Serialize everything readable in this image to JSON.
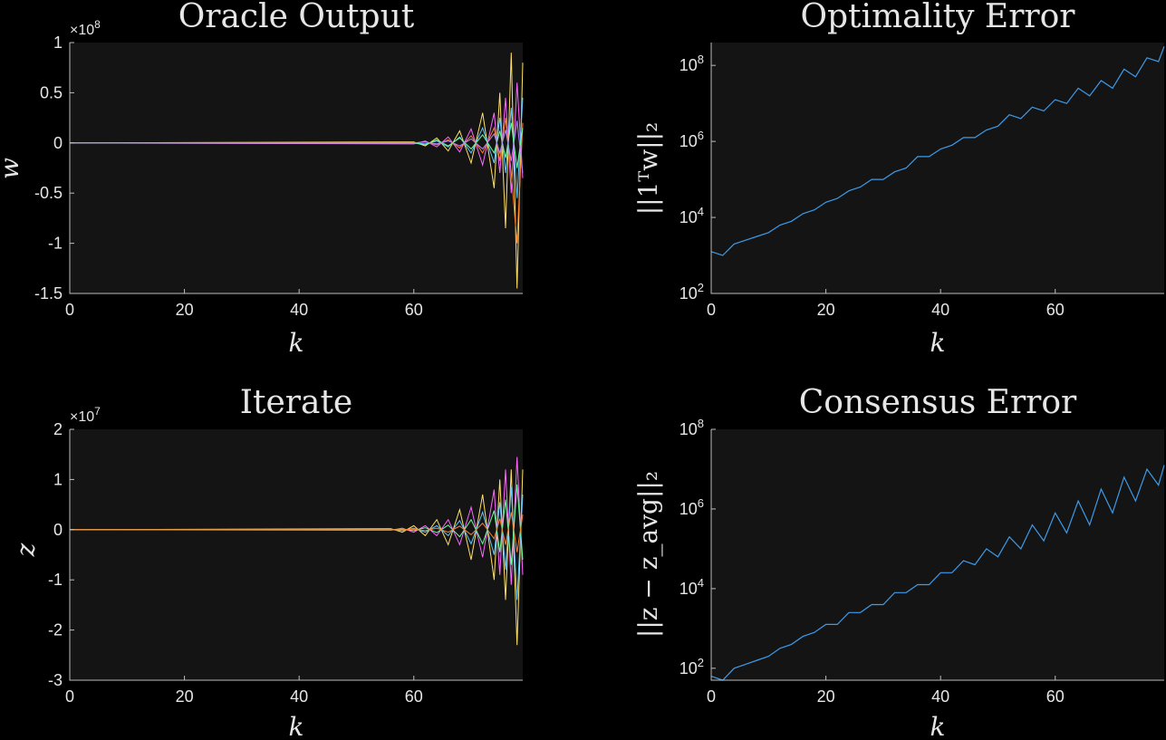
{
  "chart_data": [
    {
      "type": "line",
      "title": "Oracle Output",
      "xlabel": "k",
      "ylabel": "w",
      "xlim": [
        0,
        79
      ],
      "ylim": [
        -1.5,
        1
      ],
      "yscale": "linear",
      "exponent_label": "×10",
      "exponent_power": "8",
      "xticks": [
        0,
        20,
        40,
        60
      ],
      "xtick_labels": [
        "0",
        "20",
        "40",
        "60"
      ],
      "yticks": [
        1,
        0.5,
        0,
        -0.5,
        -1,
        -1.5
      ],
      "ytick_labels": [
        "1",
        "0.5",
        "0",
        "-0.5",
        "-1",
        "-1.5"
      ],
      "x": [
        60,
        62,
        64,
        66,
        68,
        70,
        72,
        74,
        75,
        76,
        77,
        78,
        79
      ],
      "series": [
        {
          "color": "#ffe066",
          "values": [
            0.01,
            -0.03,
            0.05,
            -0.08,
            0.12,
            -0.2,
            0.3,
            -0.45,
            0.5,
            -0.85,
            0.9,
            -1.45,
            0.8
          ]
        },
        {
          "color": "#ff66ff",
          "values": [
            -0.01,
            0.02,
            -0.04,
            0.06,
            -0.09,
            0.14,
            -0.22,
            0.3,
            -0.3,
            0.45,
            -0.5,
            0.6,
            -0.35
          ]
        },
        {
          "color": "#5ec8ff",
          "values": [
            0.0,
            -0.01,
            0.02,
            -0.04,
            0.06,
            -0.1,
            0.15,
            -0.2,
            0.25,
            -0.3,
            0.35,
            -0.55,
            0.45
          ]
        },
        {
          "color": "#ff7f2a",
          "values": [
            0.0,
            0.01,
            -0.02,
            0.03,
            -0.05,
            0.07,
            -0.1,
            0.15,
            -0.18,
            0.25,
            -0.3,
            -1.0,
            0.2
          ]
        },
        {
          "color": "#66ff99",
          "values": [
            0.0,
            -0.02,
            0.03,
            -0.03,
            0.05,
            -0.06,
            0.08,
            -0.1,
            0.12,
            -0.15,
            0.2,
            -0.25,
            0.15
          ]
        },
        {
          "color": "#b388ff",
          "values": [
            0.0,
            0.01,
            -0.01,
            0.02,
            -0.03,
            0.04,
            -0.06,
            0.09,
            -0.1,
            0.13,
            -0.18,
            0.22,
            -0.3
          ]
        }
      ]
    },
    {
      "type": "line",
      "title": "Optimality Error",
      "xlabel": "k",
      "ylabel": "||1ᵀw||₂",
      "xlim": [
        0,
        79
      ],
      "yscale": "log",
      "ylim_log10": [
        2,
        8.6
      ],
      "xticks": [
        0,
        20,
        40,
        60
      ],
      "xtick_labels": [
        "0",
        "20",
        "40",
        "60"
      ],
      "yticks_log10": [
        2,
        4,
        6,
        8
      ],
      "ytick_bases": [
        "10",
        "10",
        "10",
        "10"
      ],
      "ytick_powers": [
        "2",
        "4",
        "6",
        "8"
      ],
      "color": "#3d9be9",
      "x": [
        0,
        2,
        4,
        6,
        8,
        10,
        12,
        14,
        16,
        18,
        20,
        22,
        24,
        26,
        28,
        30,
        32,
        34,
        36,
        38,
        40,
        42,
        44,
        46,
        48,
        50,
        52,
        54,
        56,
        58,
        60,
        62,
        64,
        66,
        68,
        70,
        72,
        74,
        76,
        78,
        79
      ],
      "values_log10": [
        3.1,
        3.0,
        3.3,
        3.4,
        3.5,
        3.6,
        3.8,
        3.9,
        4.1,
        4.2,
        4.4,
        4.5,
        4.7,
        4.8,
        5.0,
        5.0,
        5.2,
        5.3,
        5.6,
        5.6,
        5.8,
        5.9,
        6.1,
        6.1,
        6.3,
        6.4,
        6.7,
        6.6,
        6.9,
        6.8,
        7.1,
        7.0,
        7.4,
        7.2,
        7.6,
        7.4,
        7.9,
        7.7,
        8.2,
        8.1,
        8.5
      ]
    },
    {
      "type": "line",
      "title": "Iterate",
      "xlabel": "k",
      "ylabel": "z",
      "xlim": [
        0,
        79
      ],
      "ylim": [
        -3,
        2
      ],
      "yscale": "linear",
      "exponent_label": "×10",
      "exponent_power": "7",
      "xticks": [
        0,
        20,
        40,
        60
      ],
      "xtick_labels": [
        "0",
        "20",
        "40",
        "60"
      ],
      "yticks": [
        2,
        1,
        0,
        -1,
        -2,
        -3
      ],
      "ytick_labels": [
        "2",
        "1",
        "0",
        "-1",
        "-2",
        "-3"
      ],
      "x": [
        56,
        58,
        60,
        62,
        64,
        66,
        68,
        70,
        72,
        74,
        75,
        76,
        77,
        78,
        79
      ],
      "series": [
        {
          "color": "#ffe066",
          "values": [
            0.02,
            -0.05,
            0.08,
            -0.12,
            0.2,
            -0.3,
            0.4,
            -0.6,
            0.7,
            -1.0,
            1.0,
            -1.4,
            1.2,
            -2.3,
            1.2
          ]
        },
        {
          "color": "#ff66ff",
          "values": [
            -0.01,
            0.03,
            -0.05,
            0.08,
            -0.12,
            0.2,
            -0.3,
            0.45,
            -0.55,
            0.8,
            -0.9,
            1.2,
            -1.1,
            1.45,
            -0.9
          ]
        },
        {
          "color": "#5ec8ff",
          "values": [
            0.0,
            -0.02,
            0.03,
            -0.05,
            0.08,
            -0.12,
            0.18,
            -0.28,
            0.35,
            -0.5,
            0.55,
            -0.8,
            0.85,
            -1.4,
            0.7
          ]
        },
        {
          "color": "#66ff99",
          "values": [
            0.0,
            0.01,
            -0.02,
            0.04,
            -0.06,
            0.09,
            -0.14,
            0.2,
            -0.28,
            0.38,
            -0.45,
            0.6,
            -0.7,
            0.9,
            -0.6
          ]
        },
        {
          "color": "#ff7f2a",
          "values": [
            0.0,
            0.0,
            0.01,
            -0.02,
            0.03,
            -0.05,
            0.07,
            -0.1,
            0.13,
            -0.18,
            0.22,
            -0.3,
            0.35,
            -0.45,
            0.3
          ]
        }
      ]
    },
    {
      "type": "line",
      "title": "Consensus Error",
      "xlabel": "k",
      "ylabel": "||z − z_avg||₂",
      "xlim": [
        0,
        79
      ],
      "yscale": "log",
      "ylim_log10": [
        1.7,
        8
      ],
      "xticks": [
        0,
        20,
        40,
        60
      ],
      "xtick_labels": [
        "0",
        "20",
        "40",
        "60"
      ],
      "yticks_log10": [
        2,
        4,
        6,
        8
      ],
      "ytick_bases": [
        "10",
        "10",
        "10",
        "10"
      ],
      "ytick_powers": [
        "2",
        "4",
        "6",
        "8"
      ],
      "color": "#3d9be9",
      "x": [
        0,
        2,
        4,
        6,
        8,
        10,
        12,
        14,
        16,
        18,
        20,
        22,
        24,
        26,
        28,
        30,
        32,
        34,
        36,
        38,
        40,
        42,
        44,
        46,
        48,
        50,
        52,
        54,
        56,
        58,
        60,
        62,
        64,
        66,
        68,
        70,
        72,
        74,
        76,
        78,
        79
      ],
      "values_log10": [
        1.8,
        1.7,
        2.0,
        2.1,
        2.2,
        2.3,
        2.5,
        2.6,
        2.8,
        2.9,
        3.1,
        3.1,
        3.4,
        3.4,
        3.6,
        3.6,
        3.9,
        3.9,
        4.1,
        4.1,
        4.4,
        4.4,
        4.7,
        4.6,
        5.0,
        4.8,
        5.3,
        5.0,
        5.6,
        5.2,
        5.9,
        5.4,
        6.2,
        5.6,
        6.5,
        5.9,
        6.8,
        6.2,
        7.0,
        6.6,
        7.1
      ]
    }
  ]
}
